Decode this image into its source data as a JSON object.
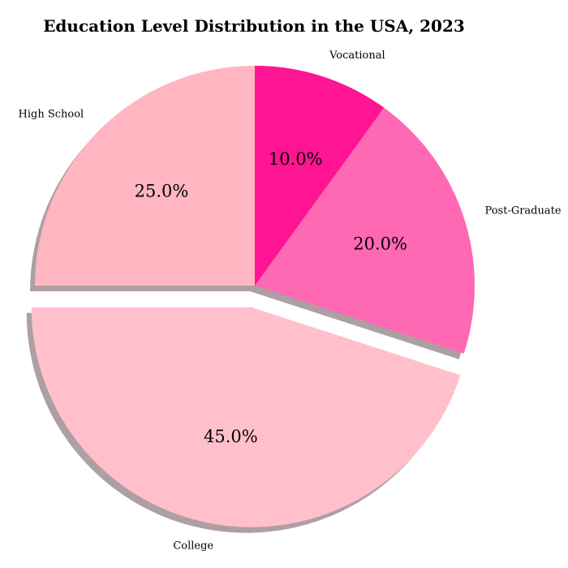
{
  "chart_data": {
    "type": "pie",
    "title": "Education Level Distribution in the USA, 2023",
    "start_angle_deg": 90,
    "direction": "clockwise",
    "shadow": true,
    "slices": [
      {
        "label": "Vocational",
        "value": 10.0,
        "pct_label": "10.0%",
        "color": "#ff1493",
        "exploded": false
      },
      {
        "label": "Post-Graduate",
        "value": 20.0,
        "pct_label": "20.0%",
        "color": "#ff69b4",
        "exploded": false
      },
      {
        "label": "College",
        "value": 45.0,
        "pct_label": "45.0%",
        "color": "#ffc0cb",
        "exploded": true
      },
      {
        "label": "High School",
        "value": 25.0,
        "pct_label": "25.0%",
        "color": "#ffb6c1",
        "exploded": false
      }
    ]
  }
}
